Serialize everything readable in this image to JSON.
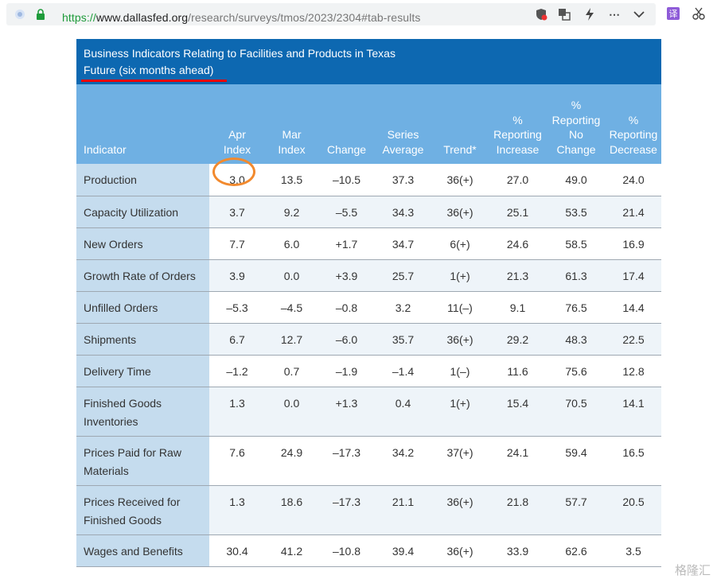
{
  "browser": {
    "url_proto": "https://",
    "url_host": "www.dallasfed.org",
    "url_path": "/research/surveys/tmos/2023/2304#tab-results",
    "translate_badge": "译"
  },
  "table": {
    "title": "Business Indicators Relating to Facilities and Products in Texas",
    "subtitle": "Future (six months ahead)",
    "headers": [
      {
        "lines": [
          "Indicator"
        ]
      },
      {
        "lines": [
          "Apr",
          "Index"
        ]
      },
      {
        "lines": [
          "Mar",
          "Index"
        ]
      },
      {
        "lines": [
          "Change"
        ]
      },
      {
        "lines": [
          "Series",
          "Average"
        ]
      },
      {
        "lines": [
          "Trend*"
        ]
      },
      {
        "lines": [
          "%",
          "Reporting",
          "Increase"
        ]
      },
      {
        "lines": [
          "%",
          "Reporting",
          "No",
          "Change"
        ]
      },
      {
        "lines": [
          "%",
          "Reporting",
          "Decrease"
        ]
      }
    ],
    "rows": [
      {
        "indicator": "Production",
        "apr": "3.0",
        "mar": "13.5",
        "change": "–10.5",
        "avg": "37.3",
        "trend": "36(+)",
        "inc": "27.0",
        "nochg": "49.0",
        "dec": "24.0"
      },
      {
        "indicator": "Capacity Utilization",
        "apr": "3.7",
        "mar": "9.2",
        "change": "–5.5",
        "avg": "34.3",
        "trend": "36(+)",
        "inc": "25.1",
        "nochg": "53.5",
        "dec": "21.4"
      },
      {
        "indicator": "New Orders",
        "apr": "7.7",
        "mar": "6.0",
        "change": "+1.7",
        "avg": "34.7",
        "trend": "6(+)",
        "inc": "24.6",
        "nochg": "58.5",
        "dec": "16.9"
      },
      {
        "indicator": "Growth Rate of Orders",
        "apr": "3.9",
        "mar": "0.0",
        "change": "+3.9",
        "avg": "25.7",
        "trend": "1(+)",
        "inc": "21.3",
        "nochg": "61.3",
        "dec": "17.4"
      },
      {
        "indicator": "Unfilled Orders",
        "apr": "–5.3",
        "mar": "–4.5",
        "change": "–0.8",
        "avg": "3.2",
        "trend": "11(–)",
        "inc": "9.1",
        "nochg": "76.5",
        "dec": "14.4"
      },
      {
        "indicator": "Shipments",
        "apr": "6.7",
        "mar": "12.7",
        "change": "–6.0",
        "avg": "35.7",
        "trend": "36(+)",
        "inc": "29.2",
        "nochg": "48.3",
        "dec": "22.5"
      },
      {
        "indicator": "Delivery Time",
        "apr": "–1.2",
        "mar": "0.7",
        "change": "–1.9",
        "avg": "–1.4",
        "trend": "1(–)",
        "inc": "11.6",
        "nochg": "75.6",
        "dec": "12.8"
      },
      {
        "indicator": "Finished Goods Inventories",
        "apr": "1.3",
        "mar": "0.0",
        "change": "+1.3",
        "avg": "0.4",
        "trend": "1(+)",
        "inc": "15.4",
        "nochg": "70.5",
        "dec": "14.1"
      },
      {
        "indicator": "Prices Paid for Raw Materials",
        "apr": "7.6",
        "mar": "24.9",
        "change": "–17.3",
        "avg": "34.2",
        "trend": "37(+)",
        "inc": "24.1",
        "nochg": "59.4",
        "dec": "16.5"
      },
      {
        "indicator": "Prices Received for Finished Goods",
        "apr": "1.3",
        "mar": "18.6",
        "change": "–17.3",
        "avg": "21.1",
        "trend": "36(+)",
        "inc": "21.8",
        "nochg": "57.7",
        "dec": "20.5"
      },
      {
        "indicator": "Wages and Benefits",
        "apr": "30.4",
        "mar": "41.2",
        "change": "–10.8",
        "avg": "39.4",
        "trend": "36(+)",
        "inc": "33.9",
        "nochg": "62.6",
        "dec": "3.5"
      }
    ]
  },
  "watermark": "格隆汇",
  "colors": {
    "caption_bg": "#0d68b1",
    "header_bg": "#6fb0e3",
    "indicator_bg": "#c5dcee",
    "highlight_circle": "#f28a2e",
    "underline": "#ee0000"
  }
}
